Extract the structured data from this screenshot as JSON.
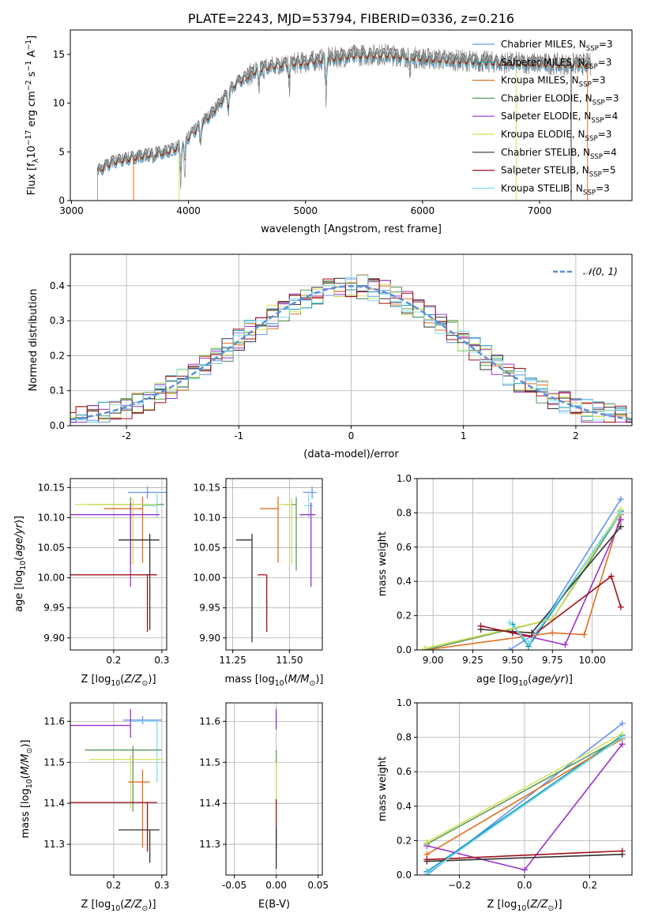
{
  "chart_data": [
    {
      "id": "spectrum",
      "type": "line",
      "title": "PLATE=2243, MJD=53794, FIBERID=0336, z=0.216",
      "xlabel": "wavelength [Angstrom, rest frame]",
      "ylabel": "Flux [f_λ 10^-17 erg cm^-2 s^-1 A^-1]",
      "xlim": [
        2990,
        7790
      ],
      "ylim": [
        0,
        17.5
      ],
      "xticks": [
        3000,
        4000,
        5000,
        6000,
        7000
      ],
      "yticks": [
        0,
        5,
        10,
        15
      ],
      "legend_position": "right",
      "series": [
        {
          "name": "Chabrier MILES, N_SSP=3",
          "color": "#6495ed"
        },
        {
          "name": "Salpeter MILES, N_SSP=3",
          "color": "#0d98ba"
        },
        {
          "name": "Kroupa MILES, N_SSP=3",
          "color": "#e07020"
        },
        {
          "name": "Chabrier ELODIE, N_SSP=3",
          "color": "#5b9a5b"
        },
        {
          "name": "Salpeter ELODIE, N_SSP=4",
          "color": "#9932cc"
        },
        {
          "name": "Kroupa ELODIE, N_SSP=3",
          "color": "#d4e157"
        },
        {
          "name": "Chabrier STELIB, N_SSP=4",
          "color": "#333333"
        },
        {
          "name": "Salpeter STELIB, N_SSP=5",
          "color": "#a0101a"
        },
        {
          "name": "Kroupa STELIB, N_SSP=3",
          "color": "#80deea"
        }
      ],
      "data_color": "#808080",
      "continuum": [
        [
          3220,
          3.0
        ],
        [
          3350,
          4.0
        ],
        [
          3600,
          4.6
        ],
        [
          3800,
          5.0
        ],
        [
          3900,
          5.4
        ],
        [
          4000,
          6.5
        ],
        [
          4200,
          9.0
        ],
        [
          4400,
          12.0
        ],
        [
          4600,
          13.5
        ],
        [
          4800,
          14.0
        ],
        [
          5000,
          14.2
        ],
        [
          5200,
          14.6
        ],
        [
          5400,
          14.9
        ],
        [
          5700,
          15.0
        ],
        [
          6000,
          14.6
        ],
        [
          6300,
          14.4
        ],
        [
          6600,
          14.2
        ],
        [
          6900,
          14.1
        ],
        [
          7200,
          14.0
        ],
        [
          7400,
          14.0
        ],
        [
          7440,
          14.0
        ]
      ],
      "absorption": [
        [
          3933,
          4.0
        ],
        [
          3968,
          3.6
        ],
        [
          4102,
          2.5
        ],
        [
          4340,
          2.0
        ],
        [
          4861,
          2.5
        ],
        [
          5175,
          4.0
        ],
        [
          5890,
          2.5
        ],
        [
          4600,
          3.0
        ],
        [
          3700,
          1.0
        ]
      ],
      "fit_starts": [
        [
          3530,
          0
        ],
        [
          3920,
          0
        ]
      ],
      "fit_drops": [
        [
          6800,
          0
        ],
        [
          7270,
          0
        ],
        [
          7410,
          0
        ]
      ]
    },
    {
      "id": "residuals",
      "type": "line",
      "xlabel": "(data-model)/error",
      "ylabel": "Normed distribution",
      "xlim": [
        -2.5,
        2.5
      ],
      "ylim": [
        0,
        0.49
      ],
      "xticks": [
        -2,
        -1,
        0,
        1,
        2
      ],
      "yticks": [
        0.0,
        0.1,
        0.2,
        0.3,
        0.4
      ],
      "legend": [
        "𝒩(0, 1)"
      ],
      "legend_position": "top-right",
      "gaussian_color": "#5b8fd9",
      "grid": true
    },
    {
      "id": "age-vs-Z",
      "type": "scatter",
      "xlabel": "Z [log10(Z/Z⊙)]",
      "ylabel": "age [log10(age/yr)]",
      "xlim": [
        0.11,
        0.31
      ],
      "ylim": [
        9.88,
        10.165
      ],
      "xticks": [
        0.2,
        0.3
      ],
      "yticks": [
        9.9,
        9.95,
        10.0,
        10.05,
        10.1,
        10.15
      ],
      "points": [
        {
          "x": 0.27,
          "y": 10.142,
          "xerr": [
            0.04,
            0.04
          ],
          "yerr": [
            0.01,
            0.01
          ],
          "color": "#6495ed"
        },
        {
          "x": 0.29,
          "y": 10.12,
          "xerr": [
            0.03,
            0.0
          ],
          "yerr": [
            0.02,
            0.02
          ],
          "color": "#80deea"
        },
        {
          "x": 0.26,
          "y": 10.115,
          "xerr": [
            0.08,
            0.0
          ],
          "yerr": [
            0.02,
            0.09
          ],
          "color": "#e07020"
        },
        {
          "x": 0.235,
          "y": 10.122,
          "xerr": [
            0.09,
            0.07
          ],
          "yerr": [
            0.012,
            0.1
          ],
          "color": "#5b9a5b"
        },
        {
          "x": 0.24,
          "y": 10.122,
          "xerr": [
            0.12,
            0.05
          ],
          "yerr": [
            0.01,
            0.1
          ],
          "color": "#d4e157"
        },
        {
          "x": 0.235,
          "y": 10.105,
          "xerr": [
            0.14,
            0.06
          ],
          "yerr": [
            0.02,
            0.12
          ],
          "color": "#9932cc"
        },
        {
          "x": 0.275,
          "y": 10.063,
          "xerr": [
            0.065,
            0.02
          ],
          "yerr": [
            0.01,
            0.15
          ],
          "color": "#333333"
        },
        {
          "x": 0.27,
          "y": 10.005,
          "xerr": [
            0.165,
            0.02
          ],
          "yerr": [
            0.0,
            0.095
          ],
          "color": "#a0101a"
        }
      ]
    },
    {
      "id": "age-vs-mass",
      "type": "scatter",
      "xlabel": "mass [log10(M/M⊙)]",
      "xlim": [
        11.22,
        11.645
      ],
      "ylim": [
        9.88,
        10.165
      ],
      "xticks": [
        11.25,
        11.5
      ],
      "yticks": [
        9.9,
        9.95,
        10.0,
        10.05,
        10.1,
        10.15
      ],
      "points": [
        {
          "x": 11.6,
          "y": 10.142,
          "xerr": [
            0.04,
            0.02
          ],
          "yerr": [
            0.01,
            0.01
          ],
          "color": "#6495ed"
        },
        {
          "x": 11.585,
          "y": 10.12,
          "xerr": [
            0.02,
            0.02
          ],
          "yerr": [
            0.02,
            0.02
          ],
          "color": "#80deea"
        },
        {
          "x": 11.45,
          "y": 10.115,
          "xerr": [
            0.08,
            0.0
          ],
          "yerr": [
            0.02,
            0.09
          ],
          "color": "#e07020"
        },
        {
          "x": 11.53,
          "y": 10.122,
          "xerr": [
            0.06,
            0.0
          ],
          "yerr": [
            0.012,
            0.11
          ],
          "color": "#5b9a5b"
        },
        {
          "x": 11.51,
          "y": 10.122,
          "xerr": [
            0.06,
            0.0
          ],
          "yerr": [
            0.01,
            0.1
          ],
          "color": "#d4e157"
        },
        {
          "x": 11.595,
          "y": 10.105,
          "xerr": [
            0.05,
            0.02
          ],
          "yerr": [
            0.02,
            0.12
          ],
          "color": "#9932cc"
        },
        {
          "x": 11.335,
          "y": 10.063,
          "xerr": [
            0.07,
            0.0
          ],
          "yerr": [
            0.01,
            0.17
          ],
          "color": "#333333"
        },
        {
          "x": 11.4,
          "y": 10.005,
          "xerr": [
            0.04,
            0.0
          ],
          "yerr": [
            0.0,
            0.095
          ],
          "color": "#a0101a"
        }
      ]
    },
    {
      "id": "weight-vs-age",
      "type": "line",
      "xlabel": "age [log10(age/yr)]",
      "ylabel": "mass weight",
      "xlim": [
        8.9,
        10.25
      ],
      "ylim": [
        0,
        1
      ],
      "xticks": [
        9.0,
        9.25,
        9.5,
        9.75,
        10.0
      ],
      "yticks": [
        0.0,
        0.2,
        0.4,
        0.6,
        0.8,
        1.0
      ],
      "series": [
        {
          "color": "#6495ed",
          "x": [
            9.48,
            9.65,
            10.18
          ],
          "y": [
            0.0,
            0.1,
            0.88
          ]
        },
        {
          "color": "#0d98ba",
          "x": [
            9.5,
            9.6,
            10.18
          ],
          "y": [
            0.15,
            0.02,
            0.81
          ]
        },
        {
          "color": "#e07020",
          "x": [
            8.95,
            9.75,
            9.95,
            10.18
          ],
          "y": [
            0.0,
            0.1,
            0.09,
            0.79
          ]
        },
        {
          "color": "#5b9a5b",
          "x": [
            8.95,
            9.75,
            10.18
          ],
          "y": [
            0.0,
            0.18,
            0.8
          ]
        },
        {
          "color": "#9932cc",
          "x": [
            9.5,
            9.83,
            10.18
          ],
          "y": [
            0.1,
            0.03,
            0.76
          ]
        },
        {
          "color": "#d4e157",
          "x": [
            8.95,
            9.75,
            10.18
          ],
          "y": [
            0.01,
            0.18,
            0.82
          ]
        },
        {
          "color": "#333333",
          "x": [
            9.3,
            9.62,
            10.18
          ],
          "y": [
            0.12,
            0.1,
            0.72
          ]
        },
        {
          "color": "#a0101a",
          "x": [
            9.3,
            9.5,
            9.62,
            10.12,
            10.18
          ],
          "y": [
            0.14,
            0.1,
            0.08,
            0.43,
            0.25
          ]
        },
        {
          "color": "#80deea",
          "x": [
            9.48,
            9.6,
            10.18
          ],
          "y": [
            0.16,
            0.04,
            0.8
          ]
        }
      ]
    },
    {
      "id": "mass-vs-Z",
      "type": "scatter",
      "xlabel": "Z [log10(Z/Z⊙)]",
      "ylabel": "mass [log10(M/M⊙)]",
      "xlim": [
        0.11,
        0.31
      ],
      "ylim": [
        11.225,
        11.645
      ],
      "xticks": [
        0.2,
        0.3
      ],
      "yticks": [
        11.3,
        11.4,
        11.5,
        11.6
      ],
      "points": [
        {
          "x": 0.26,
          "y": 11.603,
          "xerr": [
            0.04,
            0.04
          ],
          "yerr": [
            0.01,
            0.01
          ],
          "color": "#6495ed"
        },
        {
          "x": 0.29,
          "y": 11.6,
          "xerr": [
            0.05,
            0.0
          ],
          "yerr": [
            0.0,
            0.15
          ],
          "color": "#80deea"
        },
        {
          "x": 0.235,
          "y": 11.59,
          "xerr": [
            0.13,
            0.0
          ],
          "yerr": [
            0.04,
            0.03
          ],
          "color": "#9932cc"
        },
        {
          "x": 0.24,
          "y": 11.53,
          "xerr": [
            0.1,
            0.06
          ],
          "yerr": [
            0.01,
            0.15
          ],
          "color": "#5b9a5b"
        },
        {
          "x": 0.235,
          "y": 11.507,
          "xerr": [
            0.085,
            0.065
          ],
          "yerr": [
            0.01,
            0.12
          ],
          "color": "#d4e157"
        },
        {
          "x": 0.26,
          "y": 11.452,
          "xerr": [
            0.03,
            0.015
          ],
          "yerr": [
            0.03,
            0.16
          ],
          "color": "#e07020"
        },
        {
          "x": 0.27,
          "y": 11.402,
          "xerr": [
            0.165,
            0.02
          ],
          "yerr": [
            0.0,
            0.12
          ],
          "color": "#a0101a"
        },
        {
          "x": 0.275,
          "y": 11.335,
          "xerr": [
            0.065,
            0.02
          ],
          "yerr": [
            0.0,
            0.08
          ],
          "color": "#333333"
        }
      ]
    },
    {
      "id": "mass-vs-EBV",
      "type": "scatter",
      "xlabel": "E(B-V)",
      "xlim": [
        -0.06,
        0.055
      ],
      "ylim": [
        11.225,
        11.645
      ],
      "xticks": [
        -0.05,
        0.0,
        0.05
      ],
      "yticks": [
        11.3,
        11.4,
        11.5,
        11.6
      ],
      "points": [
        {
          "x": 0.0,
          "y": 11.63,
          "yerr": [
            0.0,
            0.05
          ],
          "color": "#9932cc"
        },
        {
          "x": 0.0,
          "y": 11.53,
          "yerr": [
            0.0,
            0.1
          ],
          "color": "#5b9a5b"
        },
        {
          "x": 0.0,
          "y": 11.5,
          "yerr": [
            0.0,
            0.1
          ],
          "color": "#d4e157"
        },
        {
          "x": 0.0,
          "y": 11.41,
          "yerr": [
            0.0,
            0.12
          ],
          "color": "#a0101a"
        },
        {
          "x": 0.0,
          "y": 11.34,
          "yerr": [
            0.0,
            0.1
          ],
          "color": "#333333"
        }
      ]
    },
    {
      "id": "weight-vs-Z",
      "type": "line",
      "xlabel": "Z [log10(Z/Z⊙)]",
      "ylabel": "mass weight",
      "xlim": [
        -0.33,
        0.33
      ],
      "ylim": [
        0,
        1
      ],
      "xticks": [
        -0.2,
        0.0,
        0.2
      ],
      "yticks": [
        0.0,
        0.2,
        0.4,
        0.6,
        0.8,
        1.0
      ],
      "series": [
        {
          "color": "#6495ed",
          "x": [
            -0.3,
            0.3
          ],
          "y": [
            0.0,
            0.88
          ]
        },
        {
          "color": "#0d98ba",
          "x": [
            -0.3,
            0.3
          ],
          "y": [
            0.02,
            0.81
          ]
        },
        {
          "color": "#e07020",
          "x": [
            -0.3,
            0.3
          ],
          "y": [
            0.12,
            0.79
          ]
        },
        {
          "color": "#5b9a5b",
          "x": [
            -0.3,
            0.3
          ],
          "y": [
            0.18,
            0.8
          ]
        },
        {
          "color": "#9932cc",
          "x": [
            -0.3,
            0.0,
            0.3
          ],
          "y": [
            0.17,
            0.03,
            0.76
          ]
        },
        {
          "color": "#d4e157",
          "x": [
            -0.3,
            0.3
          ],
          "y": [
            0.19,
            0.82
          ]
        },
        {
          "color": "#333333",
          "x": [
            -0.3,
            0.3
          ],
          "y": [
            0.08,
            0.12
          ]
        },
        {
          "color": "#a0101a",
          "x": [
            -0.3,
            0.3
          ],
          "y": [
            0.09,
            0.14
          ]
        },
        {
          "color": "#80deea",
          "x": [
            -0.3,
            0.3
          ],
          "y": [
            0.01,
            0.8
          ]
        }
      ]
    }
  ]
}
